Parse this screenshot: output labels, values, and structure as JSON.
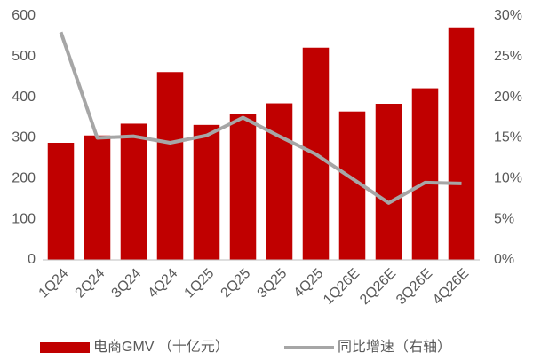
{
  "chart_data": {
    "type": "bar_line",
    "categories": [
      "1Q24",
      "2Q24",
      "3Q24",
      "4Q24",
      "1Q25",
      "2Q25",
      "3Q25",
      "4Q25",
      "1Q26E",
      "2Q26E",
      "3Q26E",
      "4Q26E"
    ],
    "series": [
      {
        "name": "电商GMV （十亿元）",
        "color": "#c00000",
        "type": "bar",
        "values": [
          288,
          306,
          335,
          462,
          332,
          358,
          385,
          522,
          365,
          384,
          422,
          570
        ]
      },
      {
        "name": "同比增速（右轴）",
        "color": "#a6a6a6",
        "type": "line",
        "axis": "y2",
        "values": [
          28,
          15,
          15.2,
          14.4,
          15.3,
          17.5,
          15.2,
          13,
          10,
          7,
          9.5,
          9.4
        ]
      }
    ],
    "ylim": [
      0,
      600
    ],
    "yticks": [
      0,
      100,
      200,
      300,
      400,
      500,
      600
    ],
    "y2lim": [
      0,
      30
    ],
    "y2ticks": [
      {
        "value": 0,
        "label": "0%"
      },
      {
        "value": 5,
        "label": "5%"
      },
      {
        "value": 10,
        "label": "10%"
      },
      {
        "value": 15,
        "label": "15%"
      },
      {
        "value": 20,
        "label": "20%"
      },
      {
        "value": 25,
        "label": "25%"
      },
      {
        "value": 30,
        "label": "30%"
      }
    ],
    "legend": "bottom"
  }
}
